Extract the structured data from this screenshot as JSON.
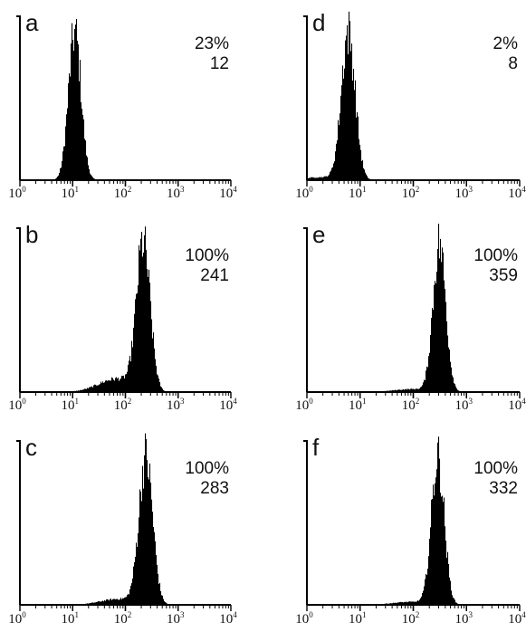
{
  "x_tick_labels": [
    {
      "base": "10",
      "exp": "0"
    },
    {
      "base": "10",
      "exp": "1"
    },
    {
      "base": "10",
      "exp": "2"
    },
    {
      "base": "10",
      "exp": "3"
    },
    {
      "base": "10",
      "exp": "4"
    }
  ],
  "chart_data": [
    {
      "type": "histogram",
      "panel": "a",
      "percent": "23%",
      "value": "12",
      "xscale": "log",
      "xlim": [
        1,
        10000
      ],
      "peak_x": 11,
      "spread_decades": 0.12,
      "left_tail": 0.0
    },
    {
      "type": "histogram",
      "panel": "b",
      "percent": "100%",
      "value": "241",
      "xscale": "log",
      "xlim": [
        1,
        10000
      ],
      "peak_x": 220,
      "spread_decades": 0.13,
      "left_tail": 0.09
    },
    {
      "type": "histogram",
      "panel": "c",
      "percent": "100%",
      "value": "283",
      "xscale": "log",
      "xlim": [
        1,
        10000
      ],
      "peak_x": 245,
      "spread_decades": 0.13,
      "left_tail": 0.04
    },
    {
      "type": "histogram",
      "panel": "d",
      "percent": "2%",
      "value": "8",
      "xscale": "log",
      "xlim": [
        1,
        10000
      ],
      "peak_x": 6,
      "spread_decades": 0.13,
      "left_tail": 0.02
    },
    {
      "type": "histogram",
      "panel": "e",
      "percent": "100%",
      "value": "359",
      "xscale": "log",
      "xlim": [
        1,
        10000
      ],
      "peak_x": 310,
      "spread_decades": 0.12,
      "left_tail": 0.02
    },
    {
      "type": "histogram",
      "panel": "f",
      "percent": "100%",
      "value": "332",
      "xscale": "log",
      "xlim": [
        1,
        10000
      ],
      "peak_x": 290,
      "spread_decades": 0.12,
      "left_tail": 0.02
    }
  ]
}
